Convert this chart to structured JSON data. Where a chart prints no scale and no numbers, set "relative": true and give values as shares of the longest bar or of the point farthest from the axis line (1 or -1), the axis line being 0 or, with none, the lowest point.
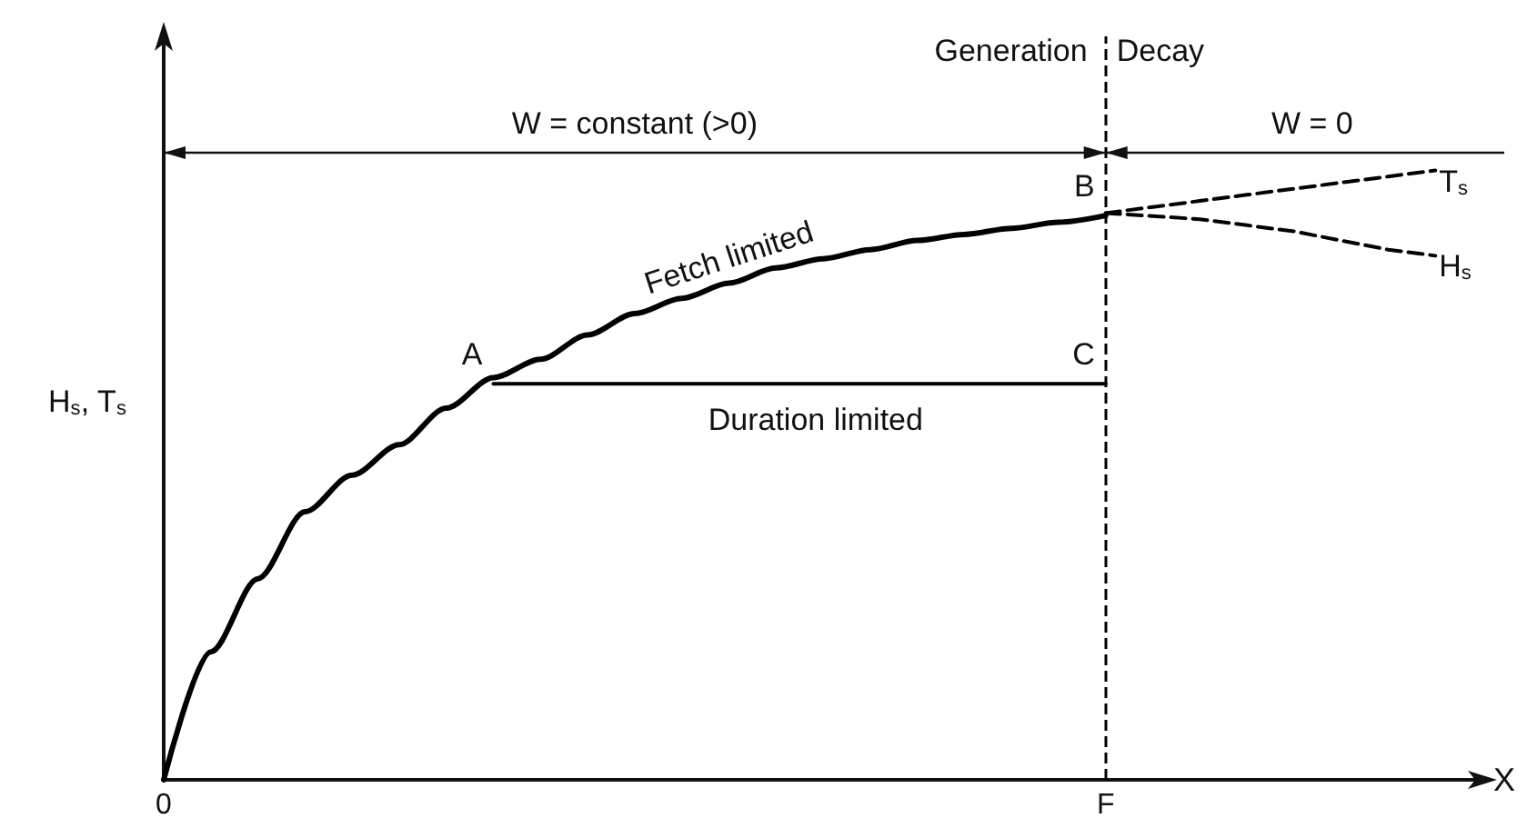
{
  "chart_data": {
    "type": "line",
    "relative": true,
    "xlabel": "X",
    "ylabel": "H$_{s}$, T$_{s}$",
    "categories": [
      "0",
      null,
      null,
      null,
      null,
      null,
      null,
      null,
      null,
      null,
      null,
      null,
      null,
      null,
      null,
      null,
      null,
      null,
      null,
      null,
      "F",
      null,
      null,
      null,
      null,
      null,
      null,
      null,
      null
    ],
    "grid": false,
    "legend": false,
    "marker": "none",
    "line_style": "solid",
    "series": [
      {
        "name": "Fetch limited",
        "color": "#000000",
        "values": [
          0,
          0.21,
          0.33,
          0.44,
          0.5,
          0.55,
          0.61,
          0.66,
          0.69,
          0.73,
          0.765,
          0.79,
          0.815,
          0.84,
          0.855,
          0.87,
          0.885,
          0.895,
          0.905,
          0.915,
          0.926,
          null,
          null,
          null,
          null,
          null,
          null,
          null,
          null
        ]
      },
      {
        "name": "Duration limited",
        "color": "#000000",
        "values": [
          null,
          null,
          null,
          null,
          null,
          null,
          null,
          0.65,
          0.65,
          0.65,
          0.65,
          0.65,
          0.65,
          0.65,
          0.65,
          0.65,
          0.65,
          0.65,
          0.65,
          0.65,
          0.65,
          null,
          null,
          null,
          null,
          null,
          null,
          null,
          null
        ]
      },
      {
        "name": "T$_{s}$",
        "color": "#000000",
        "line_style": "dashed",
        "values": [
          null,
          null,
          null,
          null,
          null,
          null,
          null,
          null,
          null,
          null,
          null,
          null,
          null,
          null,
          null,
          null,
          null,
          null,
          null,
          null,
          0.93,
          0.94,
          0.95,
          0.96,
          0.97,
          0.98,
          0.99,
          1.0,
          null
        ]
      },
      {
        "name": "H$_{s}$",
        "color": "#000000",
        "line_style": "dashed",
        "values": [
          null,
          null,
          null,
          null,
          null,
          null,
          null,
          null,
          null,
          null,
          null,
          null,
          null,
          null,
          null,
          null,
          null,
          null,
          null,
          null,
          0.93,
          0.925,
          0.92,
          0.91,
          0.9,
          0.885,
          0.87,
          0.86,
          null
        ]
      }
    ],
    "ref_lines": [
      {
        "axis": "x",
        "value": "F",
        "color": "#000000",
        "line_style": "dashed"
      }
    ],
    "annotations": [
      "Generation",
      "Decay",
      "W = constant (>0)",
      "W = 0",
      "A",
      {
        "text": "B",
        "x": "F",
        "y": 0.926
      },
      {
        "text": "C",
        "x": "F",
        "y": 0.65
      }
    ]
  }
}
